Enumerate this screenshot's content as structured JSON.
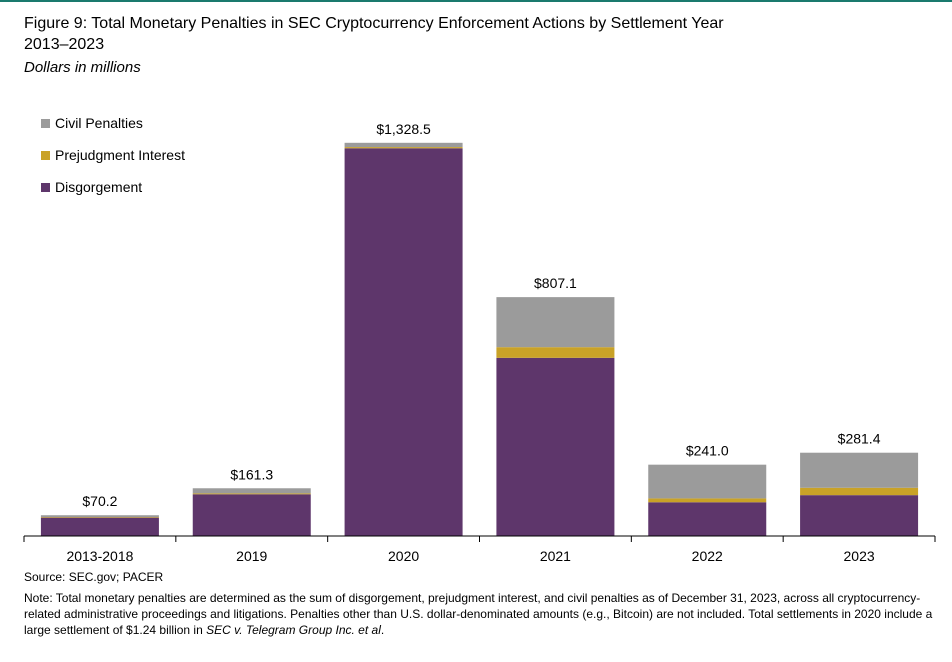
{
  "title_line1": "Figure 9: Total Monetary Penalties in SEC Cryptocurrency Enforcement Actions by Settlement Year",
  "title_line2": "2013–2023",
  "subtitle": "Dollars in millions",
  "legend": [
    {
      "label": "Civil Penalties",
      "color": "#9b9b9b"
    },
    {
      "label": "Prejudgment Interest",
      "color": "#c9a227"
    },
    {
      "label": "Disgorgement",
      "color": "#5e366b"
    }
  ],
  "chart_data": {
    "type": "bar",
    "stacked": true,
    "categories": [
      "2013-2018",
      "2019",
      "2020",
      "2021",
      "2022",
      "2023"
    ],
    "totals_labels": [
      "$70.2",
      "$161.3",
      "$1,328.5",
      "$807.1",
      "$241.0",
      "$281.4"
    ],
    "series": [
      {
        "name": "Disgorgement",
        "color": "#5e366b",
        "values": [
          62,
          141,
          1310,
          602,
          114,
          138
        ]
      },
      {
        "name": "Prejudgment Interest",
        "color": "#c9a227",
        "values": [
          2,
          3,
          4,
          36,
          13,
          25
        ]
      },
      {
        "name": "Civil Penalties",
        "color": "#9b9b9b",
        "values": [
          6.2,
          17.3,
          14.5,
          169.1,
          114.0,
          118.4
        ]
      }
    ],
    "ylim": [
      0,
      1400
    ],
    "grid": false,
    "legend_position": "top-left"
  },
  "source": "Source: SEC.gov; PACER",
  "note_main": "Note: Total monetary penalties are determined as the sum of disgorgement, prejudgment interest, and civil penalties as of December 31, 2023, across all cryptocurrency-related administrative proceedings and litigations. Penalties other than U.S. dollar-denominated amounts (e.g., Bitcoin) are not included. Total settlements in 2020 include a large settlement of $1.24 billion in ",
  "note_case": "SEC v. Telegram Group Inc. et al",
  "note_end": "."
}
